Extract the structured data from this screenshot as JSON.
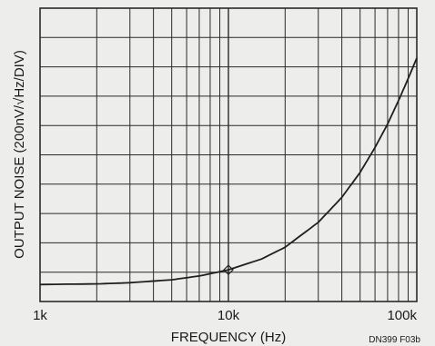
{
  "chart_data": {
    "type": "line",
    "xscale": "log",
    "xlim": [
      1000,
      100000
    ],
    "ylim_divisions": [
      0,
      10
    ],
    "grid": true,
    "xlabel": "FREQUENCY (Hz)",
    "ylabel": "OUTPUT NOISE (200nV/√Hz/DIV)",
    "x_tick_labels": [
      "1k",
      "10k",
      "100k"
    ],
    "figure_id": "DN399 F03b",
    "series": [
      {
        "x": [
          1000,
          2000,
          3000,
          5000,
          7000,
          10000,
          15000,
          20000,
          30000,
          40000,
          50000,
          60000,
          70000,
          80000,
          90000,
          100000
        ],
        "y": [
          0.58,
          0.6,
          0.64,
          0.74,
          0.87,
          1.08,
          1.45,
          1.85,
          2.7,
          3.55,
          4.4,
          5.25,
          6.05,
          6.85,
          7.6,
          8.3
        ]
      }
    ],
    "marker": {
      "x": 10000,
      "y": 1.08,
      "shape": "diamond"
    }
  },
  "colors": {
    "background": "#ededeb",
    "grid": "#2a2a2a",
    "curve": "#1f1f1f"
  }
}
